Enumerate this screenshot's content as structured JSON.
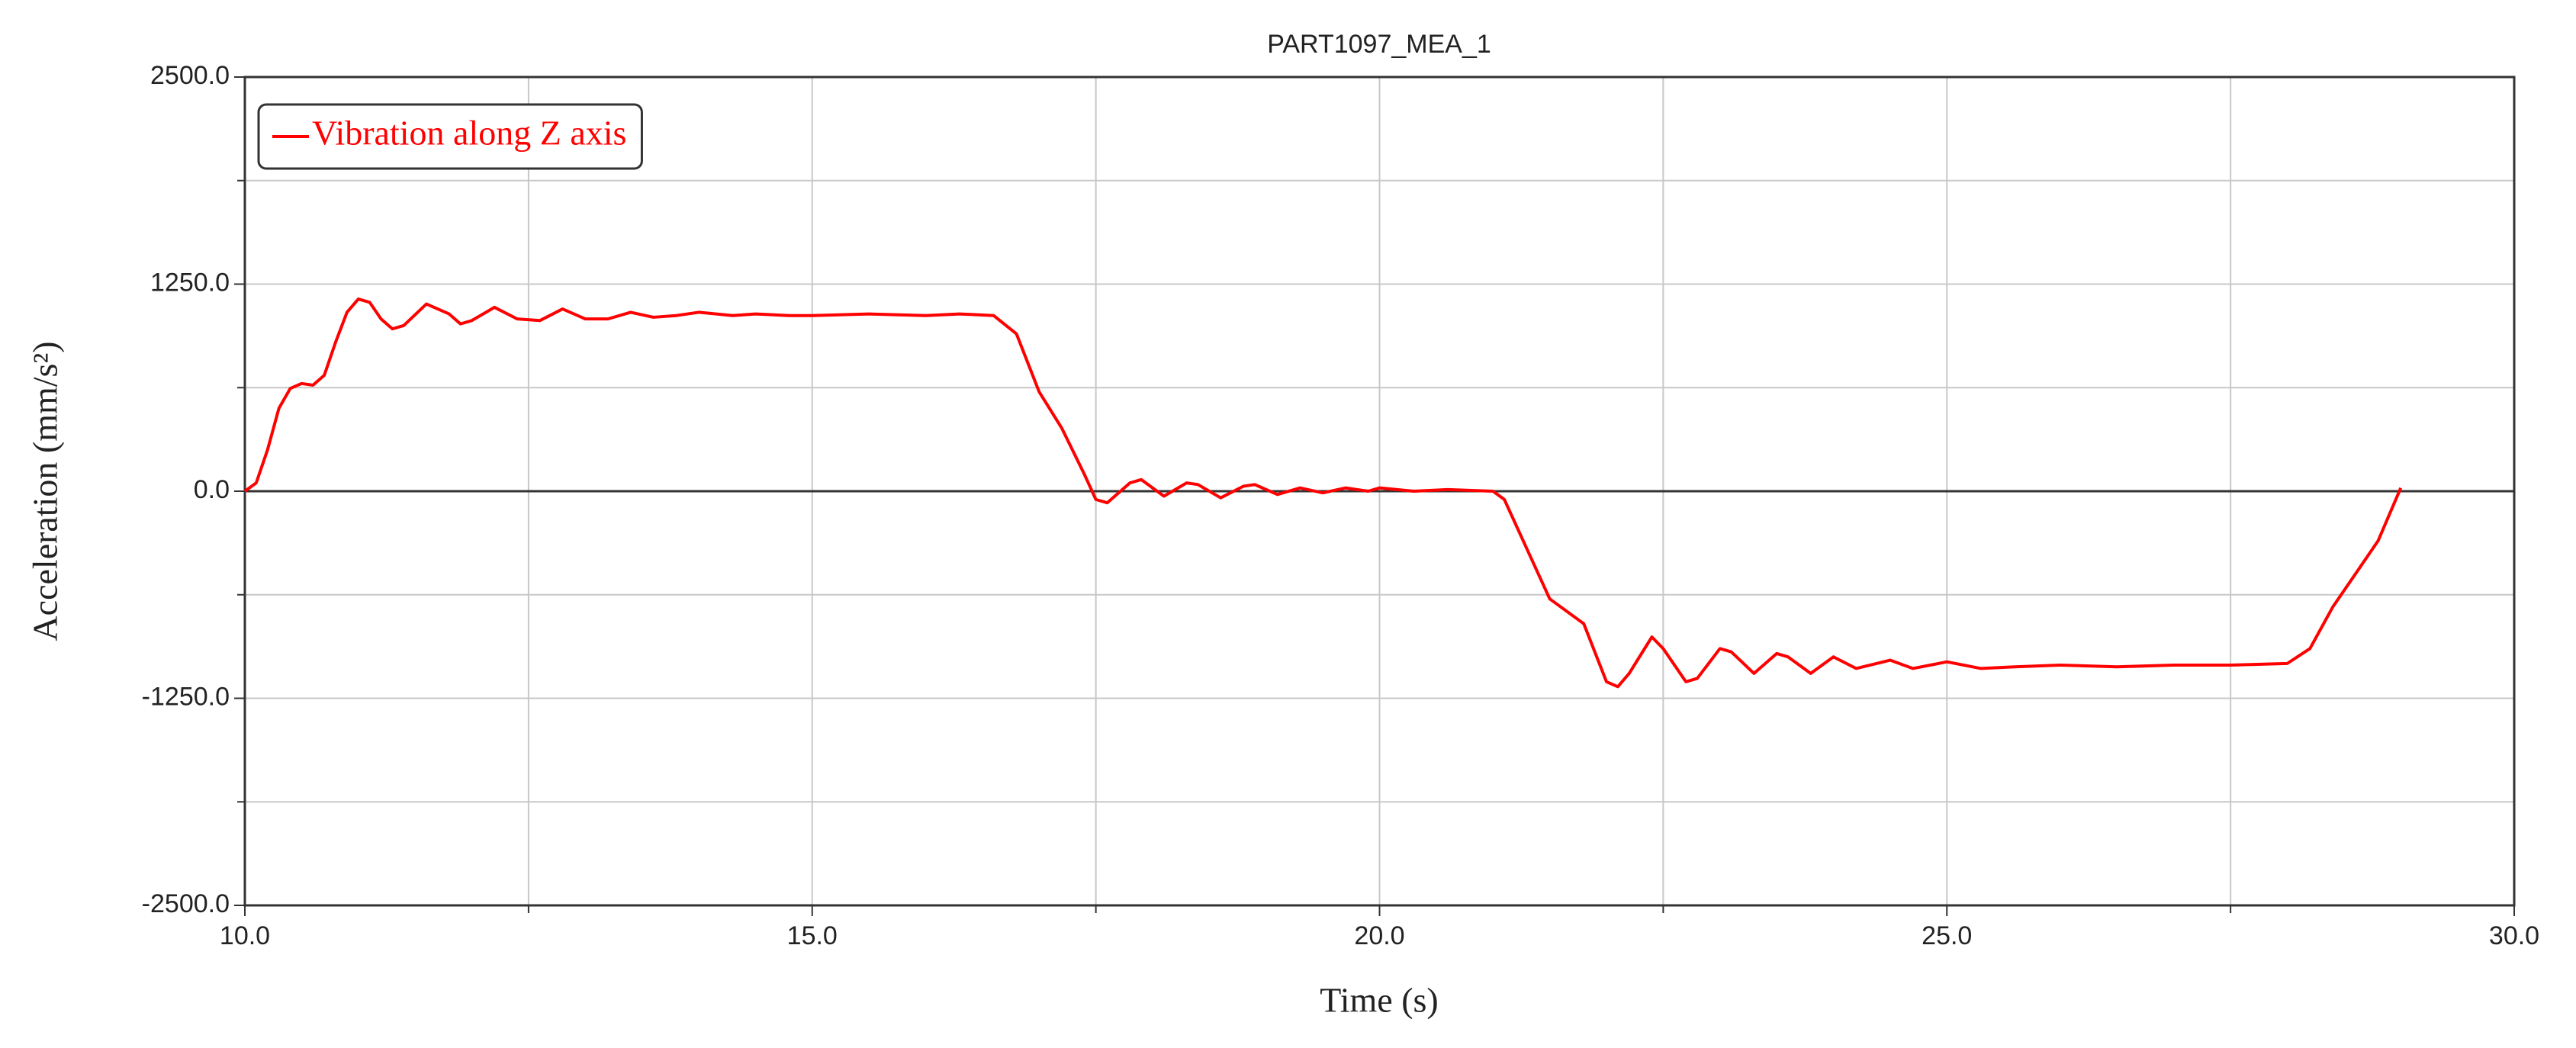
{
  "chart_data": {
    "type": "line",
    "title": "PART1097_MEA_1",
    "x_label": "Time (s)",
    "y_label": "Acceleration (mm/s²)",
    "xlim": [
      10,
      30
    ],
    "xticks": [
      {
        "value": 10,
        "label": "10.0"
      },
      {
        "value": 15,
        "label": "15.0"
      },
      {
        "value": 20,
        "label": "20.0"
      },
      {
        "value": 25,
        "label": "25.0"
      },
      {
        "value": 30,
        "label": "30.0"
      }
    ],
    "x_minor_ticks": [
      12.5,
      17.5,
      22.5,
      27.5
    ],
    "ylim": [
      -2500,
      2500
    ],
    "yticks": [
      {
        "value": -2500,
        "label": "-2500.0"
      },
      {
        "value": -1250,
        "label": "-1250.0"
      },
      {
        "value": 0,
        "label": "0.0"
      },
      {
        "value": 1250,
        "label": "1250.0"
      },
      {
        "value": 2500,
        "label": "2500.0"
      }
    ],
    "y_minor_ticks": [
      -1875,
      -625,
      625,
      1875
    ],
    "grid": true,
    "legend": "upper left",
    "x": [
      10.0,
      10.1,
      10.2,
      10.3,
      10.4,
      10.5,
      10.6,
      10.7,
      10.8,
      10.9,
      11.0,
      11.1,
      11.2,
      11.3,
      11.4,
      11.6,
      11.8,
      11.9,
      12.0,
      12.2,
      12.4,
      12.6,
      12.8,
      13.0,
      13.2,
      13.4,
      13.6,
      13.8,
      14.0,
      14.3,
      14.5,
      14.8,
      15.0,
      15.5,
      16.0,
      16.3,
      16.6,
      16.8,
      17.0,
      17.2,
      17.4,
      17.5,
      17.6,
      17.8,
      17.9,
      18.1,
      18.3,
      18.4,
      18.6,
      18.8,
      18.9,
      19.1,
      19.3,
      19.5,
      19.7,
      19.9,
      20.0,
      20.3,
      20.6,
      21.0,
      21.1,
      21.3,
      21.5,
      21.8,
      22.0,
      22.1,
      22.2,
      22.4,
      22.5,
      22.7,
      22.8,
      23.0,
      23.1,
      23.3,
      23.5,
      23.6,
      23.8,
      24.0,
      24.2,
      24.5,
      24.7,
      25.0,
      25.3,
      25.6,
      26.0,
      26.5,
      27.0,
      27.5,
      28.0,
      28.2,
      28.4,
      28.6,
      28.8,
      29.0
    ],
    "series": [
      {
        "name": "Vibration along Z axis",
        "color": "#ff0000",
        "values": [
          0,
          50,
          250,
          500,
          620,
          650,
          640,
          700,
          900,
          1080,
          1160,
          1140,
          1040,
          980,
          1000,
          1130,
          1070,
          1010,
          1030,
          1110,
          1040,
          1030,
          1100,
          1040,
          1040,
          1080,
          1050,
          1060,
          1080,
          1060,
          1070,
          1060,
          1060,
          1070,
          1060,
          1070,
          1060,
          950,
          600,
          380,
          100,
          -50,
          -70,
          50,
          70,
          -30,
          50,
          40,
          -40,
          30,
          40,
          -20,
          20,
          -10,
          20,
          0,
          20,
          0,
          10,
          0,
          -50,
          -350,
          -650,
          -800,
          -1150,
          -1180,
          -1100,
          -880,
          -950,
          -1150,
          -1130,
          -950,
          -970,
          -1100,
          -980,
          -1000,
          -1100,
          -1000,
          -1070,
          -1020,
          -1070,
          -1030,
          -1070,
          -1060,
          -1050,
          -1060,
          -1050,
          -1050,
          -1040,
          -950,
          -700,
          -500,
          -300,
          20
        ]
      }
    ]
  }
}
